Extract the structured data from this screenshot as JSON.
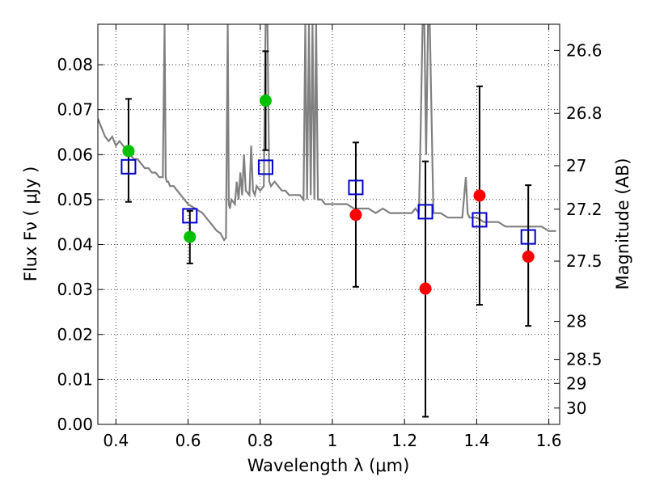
{
  "chart_data": {
    "type": "scatter",
    "xlabel": "Wavelength  λ (μm)",
    "ylabel": "Flux  Fν  ( μJy )",
    "y2label": "Magnitude (AB)",
    "xlim": [
      0.35,
      1.63
    ],
    "ylim": [
      0.0,
      0.089
    ],
    "grid": true,
    "x_ticks": [
      0.4,
      0.6,
      0.8,
      1.0,
      1.2,
      1.4,
      1.6
    ],
    "x_tick_labels": [
      "0.4",
      "0.6",
      "0.8",
      "1",
      "1.2",
      "1.4",
      "1.6"
    ],
    "y_ticks": [
      0.0,
      0.01,
      0.02,
      0.03,
      0.04,
      0.05,
      0.06,
      0.07,
      0.08
    ],
    "y_tick_labels": [
      "0.00",
      "0.01",
      "0.02",
      "0.03",
      "0.04",
      "0.05",
      "0.06",
      "0.07",
      "0.08"
    ],
    "mag_ticks": [
      26.6,
      26.8,
      27.0,
      27.2,
      27.5,
      28.0,
      28.5,
      29.0,
      30.0
    ],
    "mag_tick_labels": [
      "26.6",
      "26.8",
      "27",
      "27.2",
      "27.5",
      "28",
      "28.5",
      "29",
      "30"
    ],
    "series": [
      {
        "kind": "line",
        "color": "#808080",
        "x": [
          0.35,
          0.36,
          0.37,
          0.38,
          0.39,
          0.4,
          0.41,
          0.42,
          0.43,
          0.44,
          0.45,
          0.46,
          0.47,
          0.48,
          0.49,
          0.5,
          0.51,
          0.52,
          0.53,
          0.535,
          0.538,
          0.541,
          0.545,
          0.55,
          0.56,
          0.57,
          0.58,
          0.59,
          0.6,
          0.62,
          0.64,
          0.66,
          0.68,
          0.69,
          0.7,
          0.705,
          0.71,
          0.713,
          0.716,
          0.72,
          0.73,
          0.735,
          0.74,
          0.745,
          0.75,
          0.755,
          0.76,
          0.77,
          0.775,
          0.78,
          0.785,
          0.79,
          0.8,
          0.81,
          0.815,
          0.82,
          0.825,
          0.83,
          0.84,
          0.85,
          0.86,
          0.87,
          0.88,
          0.89,
          0.9,
          0.91,
          0.92,
          0.925,
          0.93,
          0.935,
          0.94,
          0.945,
          0.95,
          0.955,
          0.96,
          0.97,
          0.98,
          0.99,
          1.0,
          1.02,
          1.04,
          1.06,
          1.08,
          1.1,
          1.12,
          1.14,
          1.16,
          1.18,
          1.2,
          1.22,
          1.23,
          1.24,
          1.245,
          1.25,
          1.255,
          1.26,
          1.265,
          1.27,
          1.28,
          1.29,
          1.3,
          1.32,
          1.34,
          1.36,
          1.37,
          1.375,
          1.38,
          1.4,
          1.42,
          1.44,
          1.46,
          1.48,
          1.5,
          1.52,
          1.54,
          1.56,
          1.58,
          1.6,
          1.62
        ],
        "y": [
          0.068,
          0.066,
          0.064,
          0.063,
          0.064,
          0.062,
          0.063,
          0.062,
          0.061,
          0.06,
          0.059,
          0.059,
          0.058,
          0.057,
          0.057,
          0.056,
          0.056,
          0.055,
          0.055,
          0.089,
          0.055,
          0.054,
          0.054,
          0.053,
          0.053,
          0.052,
          0.051,
          0.05,
          0.049,
          0.048,
          0.047,
          0.045,
          0.043,
          0.0425,
          0.041,
          0.0415,
          0.089,
          0.049,
          0.048,
          0.05,
          0.049,
          0.054,
          0.05,
          0.056,
          0.051,
          0.06,
          0.052,
          0.051,
          0.062,
          0.052,
          0.051,
          0.053,
          0.052,
          0.053,
          0.089,
          0.089,
          0.054,
          0.053,
          0.054,
          0.053,
          0.052,
          0.052,
          0.051,
          0.051,
          0.051,
          0.051,
          0.05,
          0.089,
          0.05,
          0.089,
          0.051,
          0.089,
          0.05,
          0.089,
          0.05,
          0.05,
          0.049,
          0.049,
          0.049,
          0.049,
          0.049,
          0.048,
          0.048,
          0.048,
          0.047,
          0.048,
          0.047,
          0.047,
          0.047,
          0.047,
          0.048,
          0.047,
          0.067,
          0.089,
          0.089,
          0.06,
          0.089,
          0.089,
          0.047,
          0.047,
          0.047,
          0.046,
          0.046,
          0.046,
          0.055,
          0.047,
          0.046,
          0.046,
          0.045,
          0.045,
          0.045,
          0.044,
          0.044,
          0.044,
          0.044,
          0.044,
          0.044,
          0.043,
          0.043
        ]
      },
      {
        "kind": "points",
        "color": "#00c000",
        "x": [
          0.435,
          0.605,
          0.815
        ],
        "y": [
          0.0608,
          0.0417,
          0.072
        ],
        "yerr_low": [
          0.0495,
          0.0358,
          0.061
        ],
        "yerr_high": [
          0.0724,
          0.0475,
          0.083
        ]
      },
      {
        "kind": "points",
        "color": "#ff0000",
        "x": [
          1.065,
          1.258,
          1.408,
          1.543
        ],
        "y": [
          0.0466,
          0.0302,
          0.0509,
          0.0373
        ],
        "yerr_low": [
          0.0306,
          0.0017,
          0.0266,
          0.0219
        ],
        "yerr_high": [
          0.0627,
          0.0585,
          0.0752,
          0.0532
        ]
      },
      {
        "kind": "squares",
        "color": "#0000cc",
        "x": [
          0.435,
          0.605,
          0.815,
          1.065,
          1.258,
          1.408,
          1.543
        ],
        "y": [
          0.0573,
          0.0464,
          0.0572,
          0.0527,
          0.0473,
          0.0455,
          0.0417
        ]
      }
    ]
  }
}
